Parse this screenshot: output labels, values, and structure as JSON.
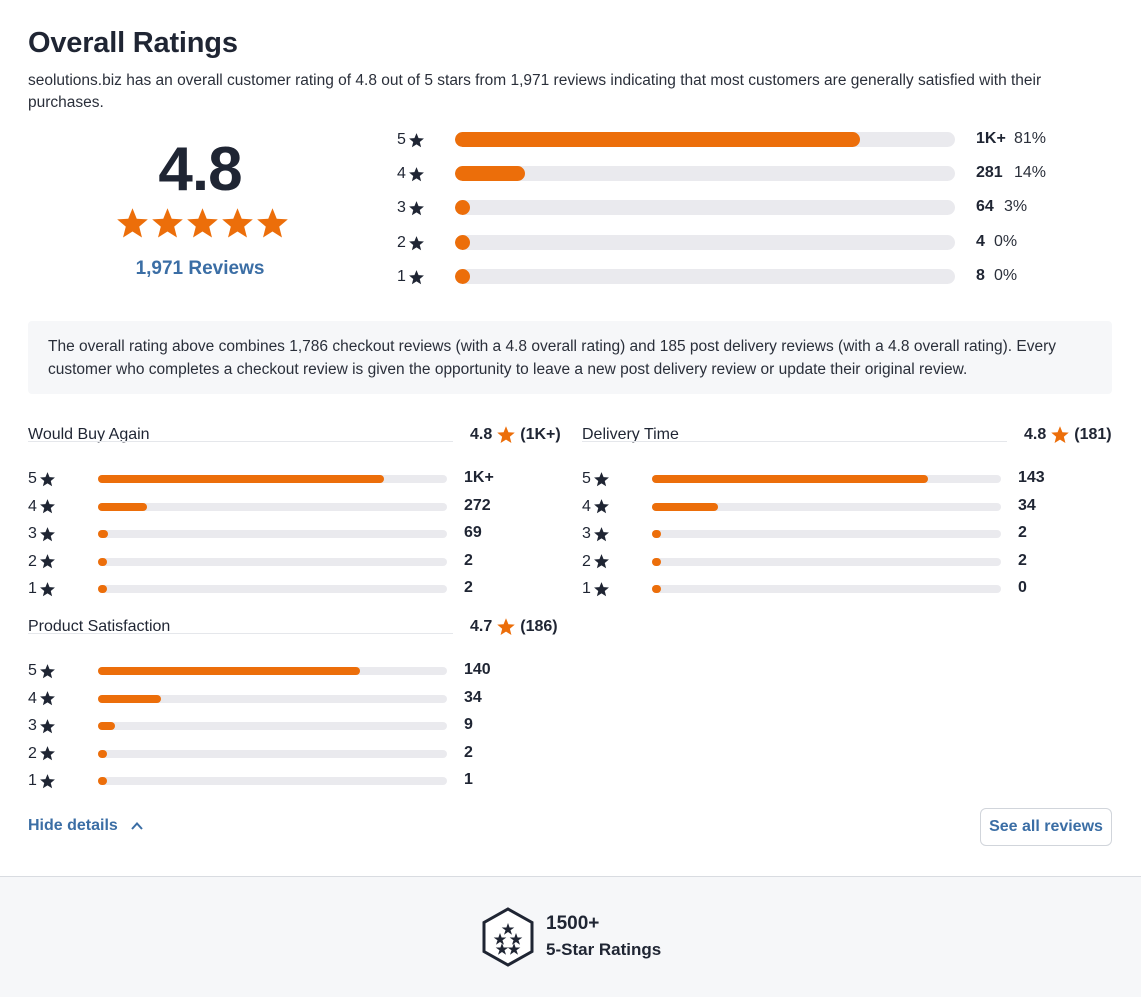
{
  "header": {
    "title": "Overall Ratings",
    "description": "seolutions.biz has an overall customer rating of 4.8 out of 5 stars from 1,971 reviews indicating that most customers are generally satisfied with their purchases."
  },
  "summary": {
    "score": "4.8",
    "stars_filled": 5,
    "reviews_link": "1,971 Reviews"
  },
  "distribution": [
    {
      "star": "5",
      "count": "1K+",
      "percent": "81%",
      "fill": 0.81
    },
    {
      "star": "4",
      "count": "281",
      "percent": "14%",
      "fill": 0.14
    },
    {
      "star": "3",
      "count": "64",
      "percent": "3%",
      "fill": 0.03
    },
    {
      "star": "2",
      "count": "4",
      "percent": "0%",
      "fill": 0.0
    },
    {
      "star": "1",
      "count": "8",
      "percent": "0%",
      "fill": 0.0
    }
  ],
  "info_note": "The overall rating above combines 1,786 checkout reviews (with a 4.8 overall rating) and 185 post delivery reviews (with a 4.8 overall rating). Every customer who completes a checkout review is given the opportunity to leave a new post delivery review or update their original review.",
  "categories": [
    {
      "title": "Would Buy Again",
      "score": "4.8",
      "count": "(1K+)",
      "rows": [
        {
          "star": "5",
          "count": "1K+",
          "fill": 0.82
        },
        {
          "star": "4",
          "count": "272",
          "fill": 0.14
        },
        {
          "star": "3",
          "count": "69",
          "fill": 0.03
        },
        {
          "star": "2",
          "count": "2",
          "fill": 0.0
        },
        {
          "star": "1",
          "count": "2",
          "fill": 0.0
        }
      ]
    },
    {
      "title": "Delivery Time",
      "score": "4.8",
      "count": "(181)",
      "rows": [
        {
          "star": "5",
          "count": "143",
          "fill": 0.79
        },
        {
          "star": "4",
          "count": "34",
          "fill": 0.19
        },
        {
          "star": "3",
          "count": "2",
          "fill": 0.01
        },
        {
          "star": "2",
          "count": "2",
          "fill": 0.01
        },
        {
          "star": "1",
          "count": "0",
          "fill": 0.0
        }
      ]
    },
    {
      "title": "Product Satisfaction",
      "score": "4.7",
      "count": "(186)",
      "rows": [
        {
          "star": "5",
          "count": "140",
          "fill": 0.75
        },
        {
          "star": "4",
          "count": "34",
          "fill": 0.18
        },
        {
          "star": "3",
          "count": "9",
          "fill": 0.05
        },
        {
          "star": "2",
          "count": "2",
          "fill": 0.01
        },
        {
          "star": "1",
          "count": "1",
          "fill": 0.01
        }
      ]
    }
  ],
  "actions": {
    "hide_details": "Hide details",
    "see_all": "See all reviews"
  },
  "footer_badge": {
    "number": "1500+",
    "label": "5-Star Ratings"
  },
  "icons": {
    "star": "star-icon",
    "chevron": "chevron-up-icon",
    "badge": "hexagon-badge-icon"
  },
  "colors": {
    "accent": "#ec6e0a",
    "link": "#3b6ea5",
    "track": "#eaeaee",
    "text": "#1f2533"
  }
}
